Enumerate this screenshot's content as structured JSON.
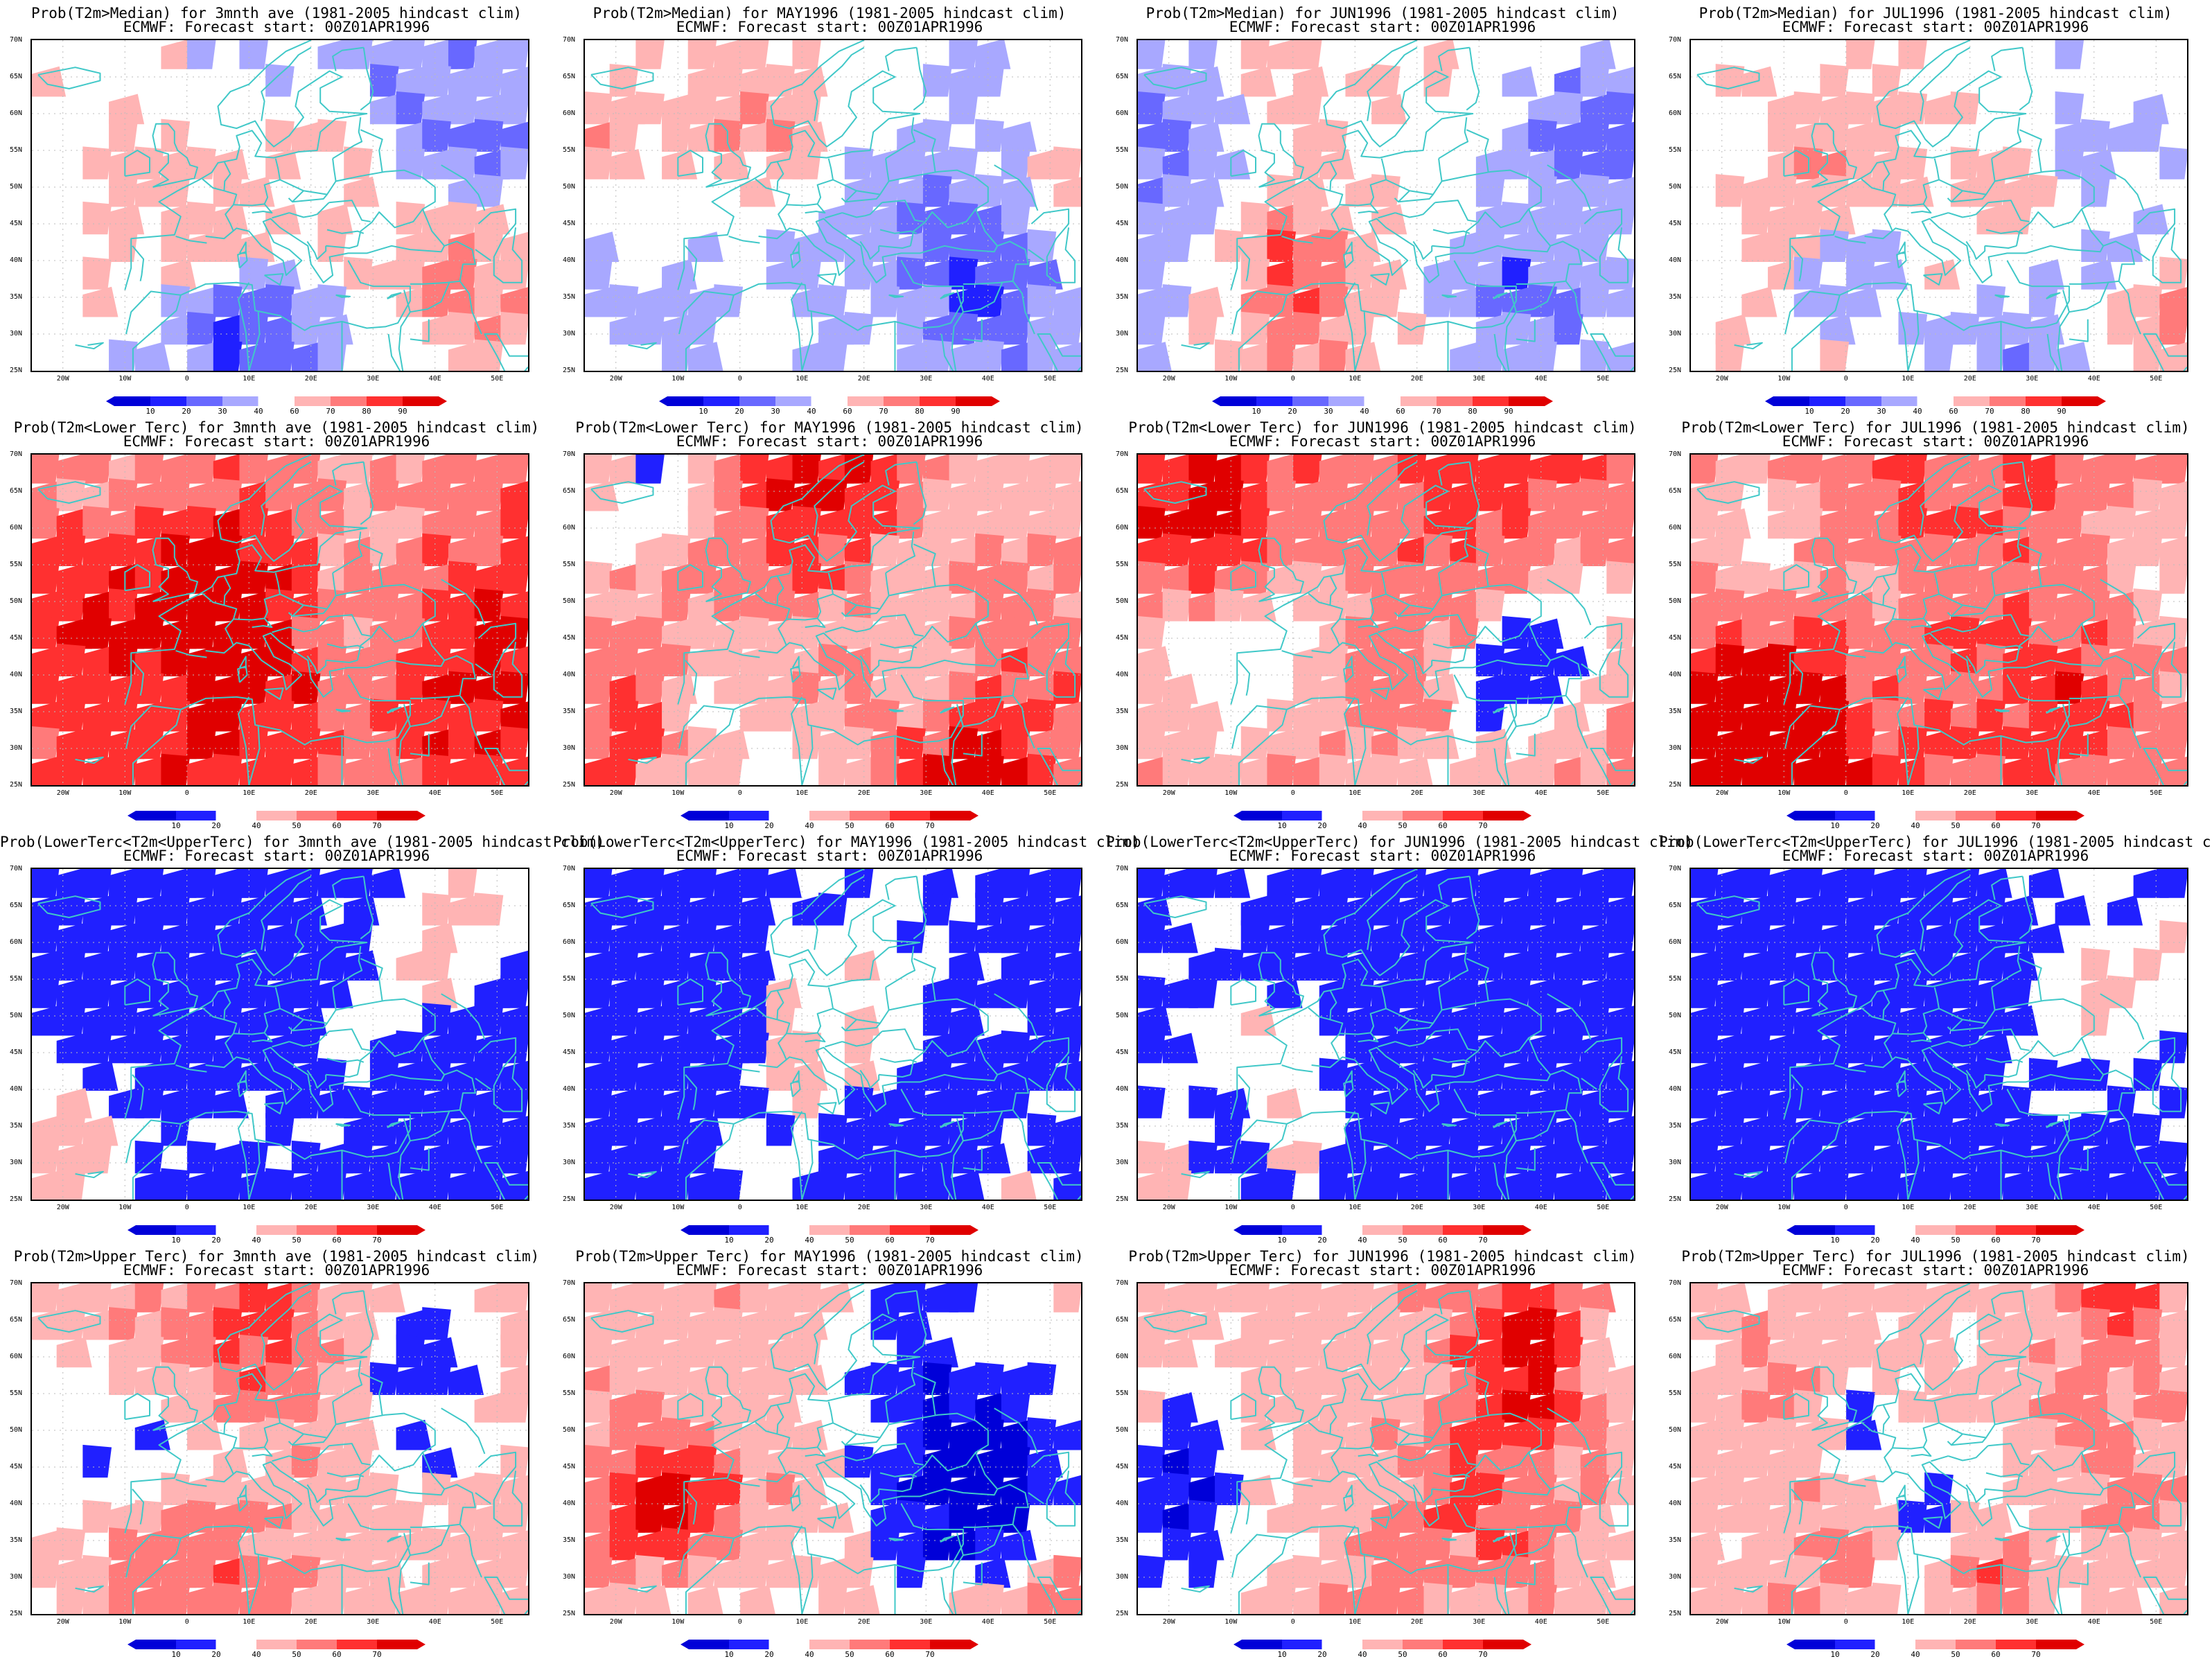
{
  "panels": [
    {
      "title": "Prob(T2m>Median) for 3mnth ave (1981-2005 hindcast clim)",
      "subtitle": "ECMWF: Forecast start: 00Z01APR1996",
      "scale": "median",
      "seed": 11
    },
    {
      "title": "Prob(T2m>Median) for MAY1996 (1981-2005 hindcast clim)",
      "subtitle": "ECMWF: Forecast start: 00Z01APR1996",
      "scale": "median",
      "seed": 12
    },
    {
      "title": "Prob(T2m>Median) for JUN1996 (1981-2005 hindcast clim)",
      "subtitle": "ECMWF: Forecast start: 00Z01APR1996",
      "scale": "median",
      "seed": 13
    },
    {
      "title": "Prob(T2m>Median) for JUL1996 (1981-2005 hindcast clim)",
      "subtitle": "ECMWF: Forecast start: 00Z01APR1996",
      "scale": "median",
      "seed": 14
    },
    {
      "title": "Prob(T2m<Lower Terc) for 3mnth ave (1981-2005 hindcast clim)",
      "subtitle": "ECMWF: Forecast start: 00Z01APR1996",
      "scale": "tercile",
      "seed": 21
    },
    {
      "title": "Prob(T2m<Lower Terc) for MAY1996 (1981-2005 hindcast clim)",
      "subtitle": "ECMWF: Forecast start: 00Z01APR1996",
      "scale": "tercile",
      "seed": 22
    },
    {
      "title": "Prob(T2m<Lower Terc) for JUN1996 (1981-2005 hindcast clim)",
      "subtitle": "ECMWF: Forecast start: 00Z01APR1996",
      "scale": "tercile",
      "seed": 23
    },
    {
      "title": "Prob(T2m<Lower Terc) for JUL1996 (1981-2005 hindcast clim)",
      "subtitle": "ECMWF: Forecast start: 00Z01APR1996",
      "scale": "tercile",
      "seed": 24
    },
    {
      "title": "Prob(LowerTerc<T2m<UpperTerc) for 3mnth ave (1981-2005 hindcast clim)",
      "subtitle": "ECMWF: Forecast start: 00Z01APR1996",
      "scale": "tercile",
      "seed": 31
    },
    {
      "title": "Prob(LowerTerc<T2m<UpperTerc) for MAY1996 (1981-2005 hindcast clim)",
      "subtitle": "ECMWF: Forecast start: 00Z01APR1996",
      "scale": "tercile",
      "seed": 32
    },
    {
      "title": "Prob(LowerTerc<T2m<UpperTerc) for JUN1996 (1981-2005 hindcast clim)",
      "subtitle": "ECMWF: Forecast start: 00Z01APR1996",
      "scale": "tercile",
      "seed": 33
    },
    {
      "title": "Prob(LowerTerc<T2m<UpperTerc) for JUL1996 (1981-2005 hindcast clim)",
      "subtitle": "ECMWF: Forecast start: 00Z01APR1996",
      "scale": "tercile",
      "seed": 34
    },
    {
      "title": "Prob(T2m>Upper Terc) for 3mnth ave (1981-2005 hindcast clim)",
      "subtitle": "ECMWF: Forecast start: 00Z01APR1996",
      "scale": "tercile",
      "seed": 41
    },
    {
      "title": "Prob(T2m>Upper Terc) for MAY1996 (1981-2005 hindcast clim)",
      "subtitle": "ECMWF: Forecast start: 00Z01APR1996",
      "scale": "tercile",
      "seed": 42
    },
    {
      "title": "Prob(T2m>Upper Terc) for JUN1996 (1981-2005 hindcast clim)",
      "subtitle": "ECMWF: Forecast start: 00Z01APR1996",
      "scale": "tercile",
      "seed": 43
    },
    {
      "title": "Prob(T2m>Upper Terc) for JUL1996 (1981-2005 hindcast clim)",
      "subtitle": "ECMWF: Forecast start: 00Z01APR1996",
      "scale": "tercile",
      "seed": 44
    }
  ],
  "lat_labels": [
    "70N",
    "65N",
    "60N",
    "55N",
    "50N",
    "45N",
    "40N",
    "35N",
    "30N",
    "25N"
  ],
  "lon_labels": [
    "20W",
    "10W",
    "0",
    "10E",
    "20E",
    "30E",
    "40E",
    "50E"
  ],
  "scales": {
    "median": {
      "ticks": [
        "10",
        "20",
        "30",
        "40",
        "60",
        "70",
        "80",
        "90"
      ],
      "colors": [
        "#0000d8",
        "#2020ff",
        "#6868ff",
        "#a8a8ff",
        "#ffffff",
        "#ffb4b4",
        "#ff7a7a",
        "#ff3030",
        "#e00000"
      ]
    },
    "tercile": {
      "ticks": [
        "10",
        "20",
        "40",
        "50",
        "60",
        "70"
      ],
      "colors": [
        "#0000d8",
        "#2020ff",
        "#ffffff",
        "#ffb4b4",
        "#ff7a7a",
        "#ff3030",
        "#e00000"
      ]
    }
  },
  "colors": {
    "coast": "#40c8c8",
    "grid": "#bbbbbb"
  }
}
